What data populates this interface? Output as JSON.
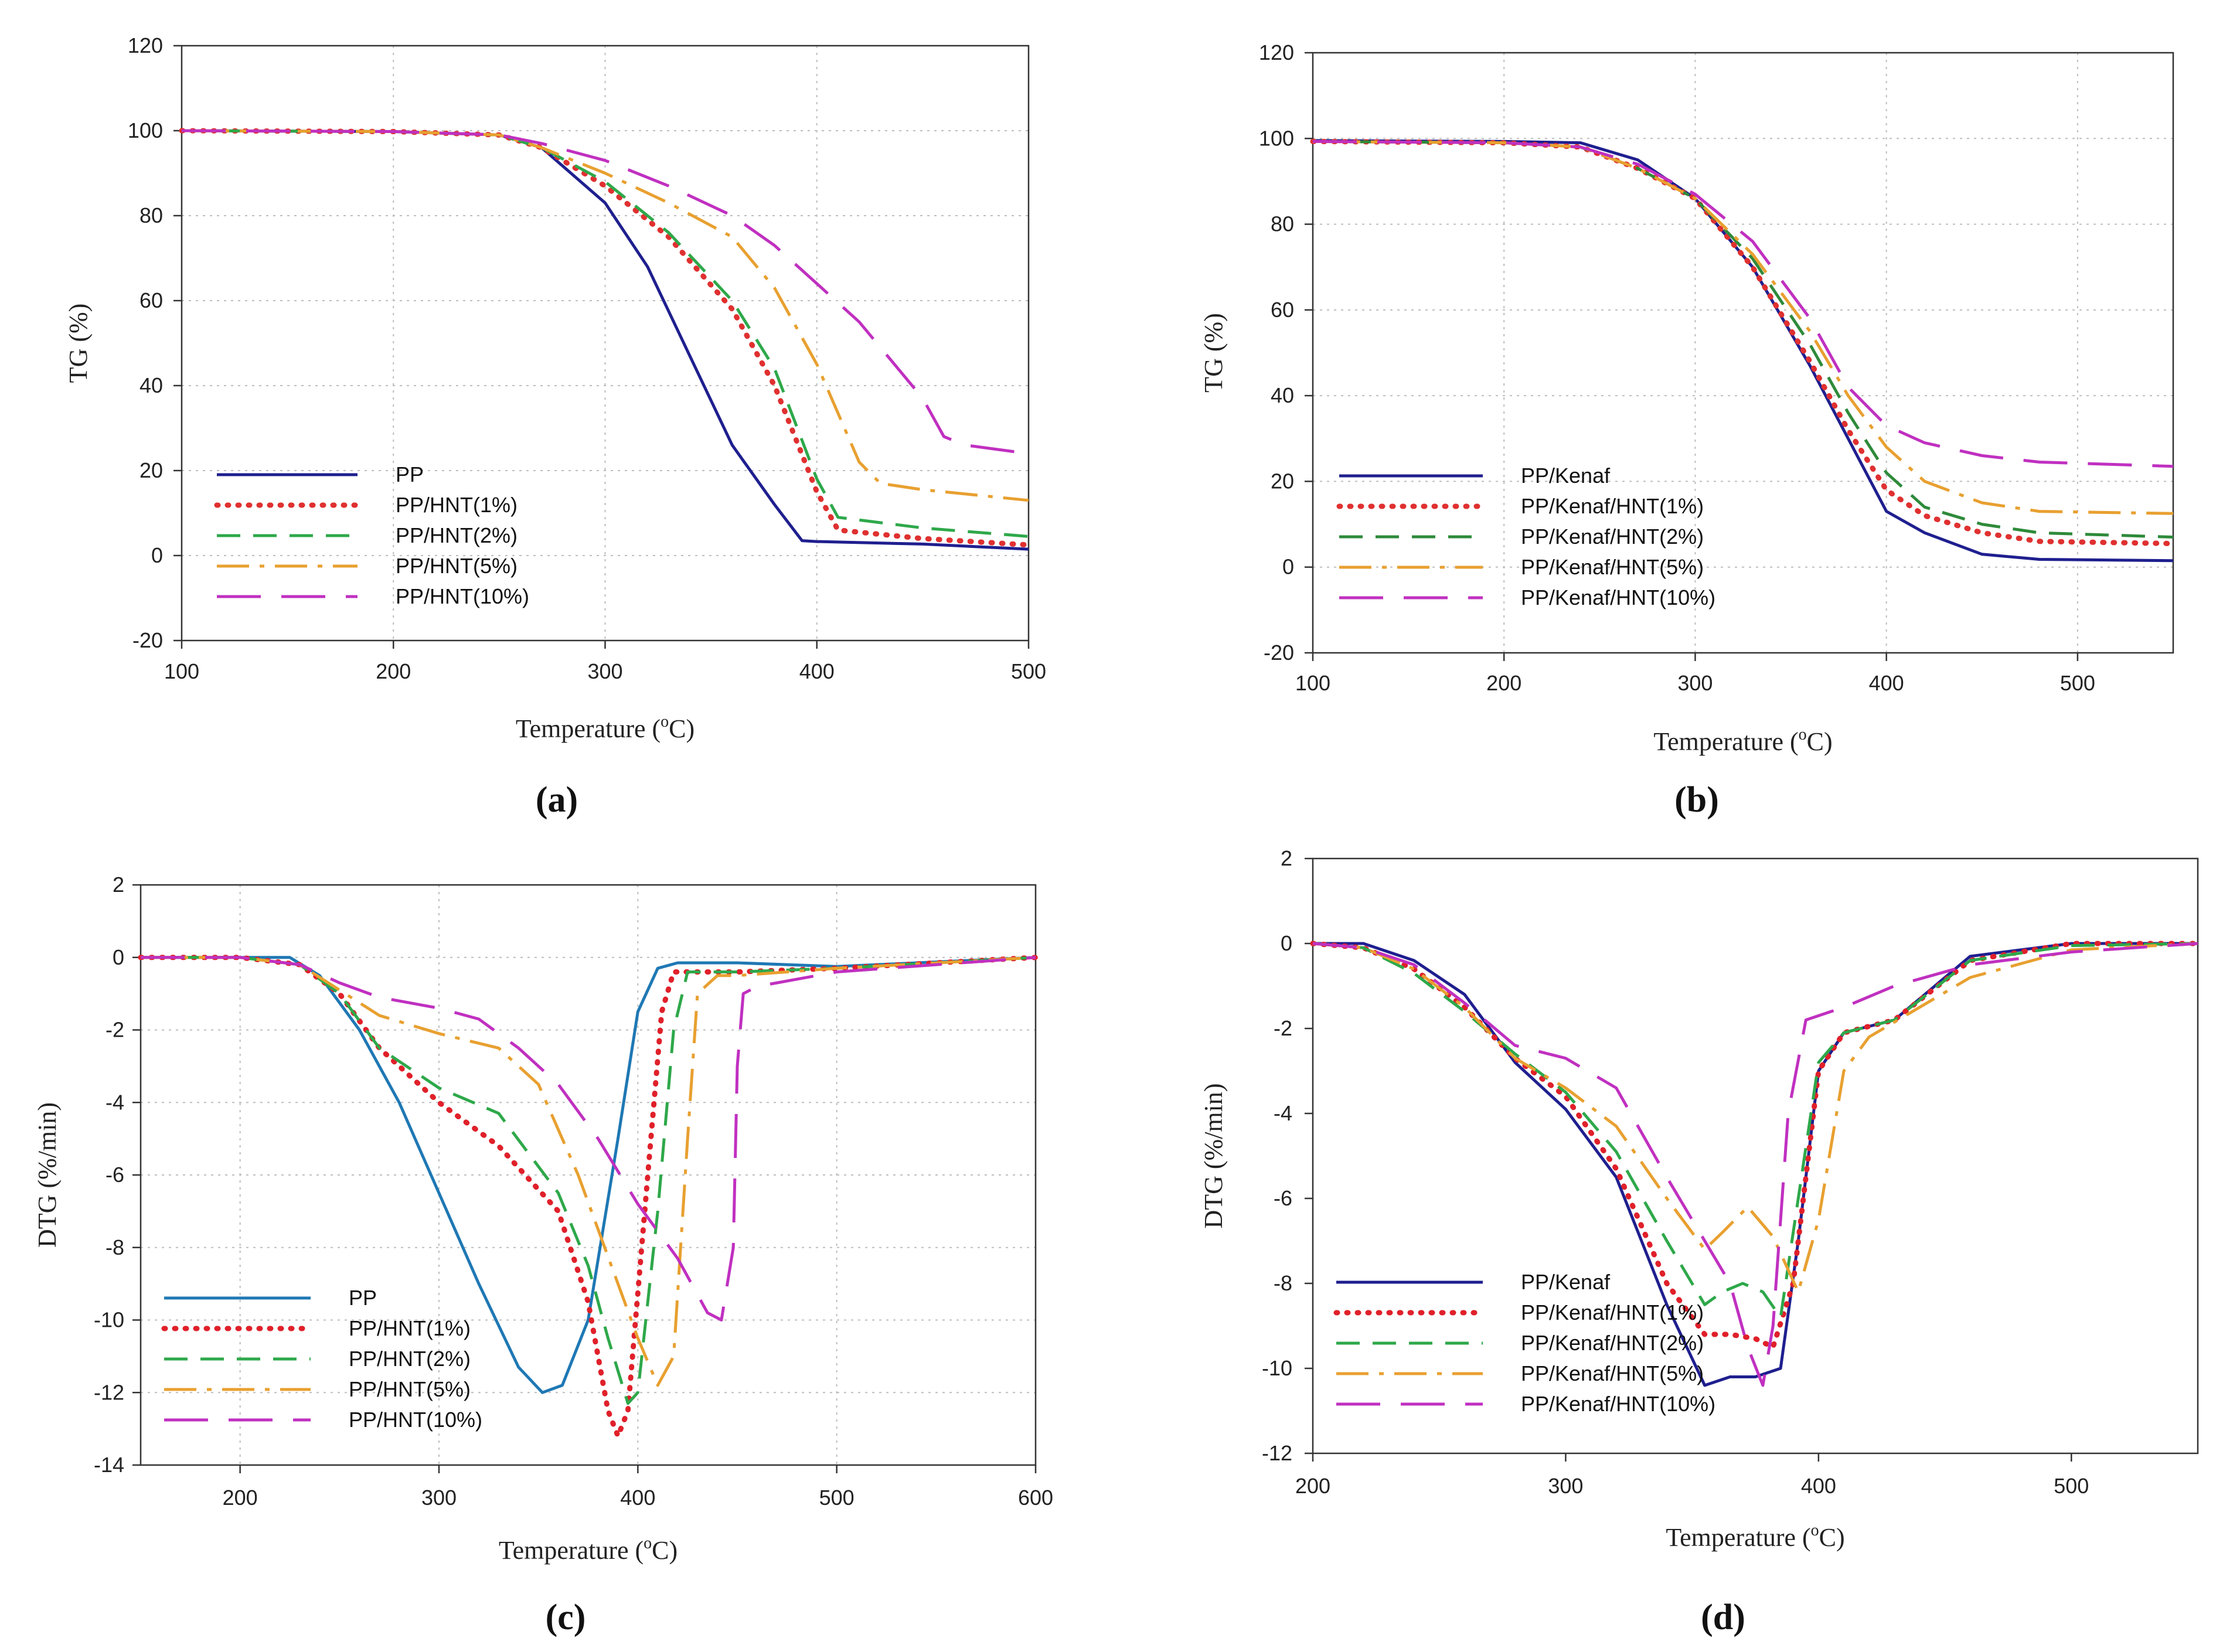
{
  "chart_data": [
    {
      "type": "line",
      "panel_label": "(a)",
      "xlabel_main": "Temperature (",
      "xlabel_sup": "o",
      "xlabel_tail": "C)",
      "ylabel": "TG (%)",
      "xlim": [
        100,
        500
      ],
      "ylim": [
        -20,
        120
      ],
      "xticks": [
        100,
        200,
        300,
        400,
        500
      ],
      "yticks": [
        -20,
        0,
        20,
        40,
        60,
        80,
        100,
        120
      ],
      "grid": true,
      "legend_position": "bottom-left",
      "series": [
        {
          "name": "PP",
          "color": "#1f1f8f",
          "dash": "solid",
          "x": [
            100,
            200,
            250,
            270,
            300,
            320,
            340,
            360,
            380,
            393,
            400,
            450,
            500
          ],
          "y": [
            100,
            99.8,
            99,
            96,
            83,
            68,
            47,
            26,
            12,
            3.5,
            3.3,
            2.7,
            1.5
          ]
        },
        {
          "name": "PP/HNT(1%)",
          "color": "#e03030",
          "dash": "dotted",
          "x": [
            100,
            200,
            250,
            270,
            300,
            330,
            360,
            380,
            400,
            410,
            450,
            500
          ],
          "y": [
            100,
            99.8,
            99,
            96,
            87,
            75,
            58,
            40,
            15,
            6,
            4,
            2.5
          ]
        },
        {
          "name": "PP/HNT(2%)",
          "color": "#2ea84a",
          "dash": "dashed",
          "x": [
            100,
            200,
            250,
            270,
            300,
            330,
            360,
            380,
            400,
            410,
            450,
            500
          ],
          "y": [
            100,
            99.8,
            99,
            96,
            88,
            76,
            60,
            44,
            18,
            9,
            6.5,
            4.5
          ]
        },
        {
          "name": "PP/HNT(5%)",
          "color": "#e8a030",
          "dash": "dashdot",
          "x": [
            100,
            200,
            250,
            270,
            300,
            330,
            360,
            380,
            400,
            420,
            430,
            450,
            500
          ],
          "y": [
            100,
            99.8,
            99,
            96,
            90,
            83,
            75,
            63,
            45,
            22,
            17,
            15.5,
            13
          ]
        },
        {
          "name": "PP/HNT(10%)",
          "color": "#c030c0",
          "dash": "longdash",
          "x": [
            100,
            200,
            250,
            270,
            300,
            330,
            360,
            380,
            400,
            420,
            440,
            450,
            460,
            470,
            500
          ],
          "y": [
            100,
            99.8,
            99,
            97,
            93,
            87,
            80,
            73,
            64,
            55,
            43,
            37,
            28,
            26,
            24
          ]
        }
      ]
    },
    {
      "type": "line",
      "panel_label": "(b)",
      "xlabel_main": "Temperature (",
      "xlabel_sup": "o",
      "xlabel_tail": "C)",
      "ylabel": "TG (%)",
      "xlim": [
        100,
        550
      ],
      "ylim": [
        -20,
        120
      ],
      "xticks": [
        100,
        200,
        300,
        400,
        500
      ],
      "yticks": [
        -20,
        0,
        20,
        40,
        60,
        80,
        100,
        120
      ],
      "grid": true,
      "legend_position": "bottom-left",
      "series": [
        {
          "name": "PP/Kenaf",
          "color": "#1f1f8f",
          "dash": "solid",
          "x": [
            100,
            200,
            240,
            270,
            300,
            330,
            360,
            380,
            400,
            420,
            450,
            480,
            550
          ],
          "y": [
            99.5,
            99.3,
            99,
            95,
            86,
            70,
            47,
            30,
            13,
            8,
            3,
            1.8,
            1.5
          ]
        },
        {
          "name": "PP/Kenaf/HNT(1%)",
          "color": "#e03030",
          "dash": "dotted",
          "x": [
            100,
            200,
            240,
            270,
            300,
            330,
            360,
            380,
            400,
            420,
            450,
            480,
            550
          ],
          "y": [
            99.3,
            99,
            98,
            93,
            86,
            70,
            48,
            32,
            18,
            12,
            8,
            6,
            5.5
          ]
        },
        {
          "name": "PP/Kenaf/HNT(2%)",
          "color": "#2e8a3a",
          "dash": "dashed",
          "x": [
            100,
            200,
            240,
            270,
            300,
            330,
            360,
            380,
            400,
            420,
            450,
            480,
            550
          ],
          "y": [
            99.3,
            99,
            98,
            93,
            86,
            72,
            52,
            36,
            22,
            14,
            10,
            8,
            7
          ]
        },
        {
          "name": "PP/Kenaf/HNT(5%)",
          "color": "#e8a030",
          "dash": "dashdot",
          "x": [
            100,
            200,
            240,
            270,
            300,
            330,
            360,
            380,
            400,
            420,
            450,
            480,
            550
          ],
          "y": [
            99.3,
            99,
            98,
            93,
            86,
            73,
            55,
            40,
            28,
            20,
            15,
            13,
            12.5
          ]
        },
        {
          "name": "PP/Kenaf/HNT(10%)",
          "color": "#c030c0",
          "dash": "longdash",
          "x": [
            100,
            200,
            240,
            270,
            300,
            330,
            360,
            380,
            400,
            420,
            450,
            480,
            550
          ],
          "y": [
            99.3,
            99,
            98,
            94,
            87,
            76,
            58,
            42,
            33,
            29,
            26,
            24.5,
            23.5
          ]
        }
      ]
    },
    {
      "type": "line",
      "panel_label": "(c)",
      "xlabel_main": "Temperature (",
      "xlabel_sup": "o",
      "xlabel_tail": "C)",
      "ylabel": "DTG (%/min)",
      "xlim": [
        150,
        600
      ],
      "ylim": [
        -14,
        2
      ],
      "xticks": [
        200,
        300,
        400,
        500,
        600
      ],
      "yticks": [
        -14,
        -12,
        -10,
        -8,
        -6,
        -4,
        -2,
        0,
        2
      ],
      "grid": true,
      "legend_position": "bottom-left",
      "series": [
        {
          "name": "PP",
          "color": "#1f78b4",
          "dash": "solid",
          "x": [
            150,
            200,
            225,
            240,
            260,
            280,
            300,
            320,
            340,
            352,
            362,
            375,
            390,
            400,
            410,
            420,
            450,
            500,
            600
          ],
          "y": [
            0,
            0,
            0,
            -0.5,
            -2,
            -4,
            -6.5,
            -9,
            -11.3,
            -12,
            -11.8,
            -10,
            -5,
            -1.5,
            -0.3,
            -0.15,
            -0.15,
            -0.25,
            0
          ]
        },
        {
          "name": "PP/HNT(1%)",
          "color": "#e0202a",
          "dash": "dotted",
          "x": [
            150,
            200,
            230,
            250,
            270,
            300,
            330,
            360,
            375,
            385,
            390,
            395,
            405,
            412,
            418,
            450,
            500,
            600
          ],
          "y": [
            0,
            0,
            -0.2,
            -1,
            -2.5,
            -4,
            -5.2,
            -7,
            -9.5,
            -12.5,
            -13.2,
            -12.5,
            -6,
            -1.5,
            -0.4,
            -0.4,
            -0.3,
            0
          ]
        },
        {
          "name": "PP/HNT(2%)",
          "color": "#2ea84a",
          "dash": "dashed",
          "x": [
            150,
            200,
            230,
            250,
            270,
            300,
            330,
            360,
            375,
            385,
            395,
            400,
            410,
            418,
            425,
            450,
            500,
            600
          ],
          "y": [
            0,
            0,
            -0.2,
            -1,
            -2.5,
            -3.6,
            -4.3,
            -6.5,
            -8.5,
            -10.5,
            -12.3,
            -12,
            -7,
            -2,
            -0.4,
            -0.4,
            -0.3,
            0
          ]
        },
        {
          "name": "PP/HNT(5%)",
          "color": "#e8a030",
          "dash": "dashdot",
          "x": [
            150,
            200,
            230,
            250,
            270,
            300,
            330,
            350,
            370,
            390,
            400,
            410,
            418,
            425,
            430,
            440,
            450,
            500,
            600
          ],
          "y": [
            0,
            0,
            -0.2,
            -0.9,
            -1.6,
            -2.1,
            -2.5,
            -3.5,
            -6,
            -9,
            -10.5,
            -11.8,
            -11,
            -5,
            -1,
            -0.5,
            -0.5,
            -0.3,
            0
          ]
        },
        {
          "name": "PP/HNT(10%)",
          "color": "#c030c0",
          "dash": "longdash",
          "x": [
            150,
            200,
            230,
            250,
            270,
            300,
            320,
            340,
            360,
            380,
            400,
            420,
            435,
            442,
            448,
            450,
            453,
            460,
            500,
            600
          ],
          "y": [
            0,
            0,
            -0.2,
            -0.7,
            -1.1,
            -1.4,
            -1.7,
            -2.5,
            -3.5,
            -5,
            -6.8,
            -8.3,
            -9.8,
            -10,
            -8,
            -3,
            -1,
            -0.8,
            -0.4,
            0
          ]
        }
      ]
    },
    {
      "type": "line",
      "panel_label": "(d)",
      "xlabel_main": "Temperature (",
      "xlabel_sup": "o",
      "xlabel_tail": "C)",
      "ylabel": "DTG (%/min)",
      "xlim": [
        200,
        550
      ],
      "ylim": [
        -12,
        2
      ],
      "xticks": [
        200,
        300,
        400,
        500
      ],
      "yticks": [
        -12,
        -10,
        -8,
        -6,
        -4,
        -2,
        0,
        2
      ],
      "grid": false,
      "legend_position": "bottom-left",
      "series": [
        {
          "name": "PP/Kenaf",
          "color": "#1f1f8f",
          "dash": "solid",
          "x": [
            200,
            220,
            240,
            260,
            280,
            300,
            320,
            340,
            355,
            365,
            375,
            385,
            392,
            400,
            410,
            430,
            460,
            500,
            550
          ],
          "y": [
            0,
            0,
            -0.4,
            -1.2,
            -2.8,
            -3.9,
            -5.5,
            -8.5,
            -10.4,
            -10.2,
            -10.2,
            -10,
            -7,
            -3,
            -2.1,
            -1.8,
            -0.3,
            0,
            0
          ]
        },
        {
          "name": "PP/Kenaf/HNT(1%)",
          "color": "#e0202a",
          "dash": "dotted",
          "x": [
            200,
            220,
            240,
            260,
            280,
            300,
            320,
            340,
            355,
            365,
            375,
            382,
            390,
            400,
            410,
            430,
            460,
            500,
            550
          ],
          "y": [
            0,
            -0.1,
            -0.6,
            -1.5,
            -2.7,
            -3.6,
            -5.3,
            -8,
            -9.2,
            -9.2,
            -9.3,
            -9.5,
            -8,
            -3,
            -2.1,
            -1.8,
            -0.4,
            0,
            0
          ]
        },
        {
          "name": "PP/Kenaf/HNT(2%)",
          "color": "#2ea84a",
          "dash": "dashed",
          "x": [
            200,
            220,
            240,
            260,
            280,
            300,
            320,
            340,
            355,
            362,
            370,
            378,
            385,
            392,
            400,
            410,
            430,
            460,
            500,
            550
          ],
          "y": [
            0,
            -0.1,
            -0.7,
            -1.6,
            -2.6,
            -3.5,
            -4.9,
            -7,
            -8.5,
            -8.2,
            -8,
            -8.2,
            -8.8,
            -6,
            -2.8,
            -2.1,
            -1.8,
            -0.4,
            -0.05,
            0
          ]
        },
        {
          "name": "PP/Kenaf/HNT(5%)",
          "color": "#e8a030",
          "dash": "dashdot",
          "x": [
            200,
            220,
            240,
            260,
            280,
            300,
            320,
            340,
            355,
            362,
            372,
            382,
            392,
            400,
            410,
            420,
            440,
            460,
            500,
            550
          ],
          "y": [
            0,
            -0.1,
            -0.6,
            -1.5,
            -2.7,
            -3.4,
            -4.3,
            -6,
            -7.2,
            -6.8,
            -6.2,
            -6.9,
            -8.2,
            -6.5,
            -3,
            -2.2,
            -1.5,
            -0.8,
            -0.15,
            0
          ]
        },
        {
          "name": "PP/Kenaf/HNT(10%)",
          "color": "#c030c0",
          "dash": "longdash",
          "x": [
            200,
            220,
            240,
            260,
            280,
            300,
            320,
            340,
            355,
            365,
            372,
            378,
            382,
            388,
            395,
            410,
            430,
            460,
            500,
            550
          ],
          "y": [
            0,
            -0.1,
            -0.5,
            -1.4,
            -2.4,
            -2.7,
            -3.4,
            -5.5,
            -7,
            -8,
            -9.5,
            -10.4,
            -9,
            -4,
            -1.8,
            -1.5,
            -1,
            -0.5,
            -0.2,
            0
          ]
        }
      ]
    }
  ]
}
